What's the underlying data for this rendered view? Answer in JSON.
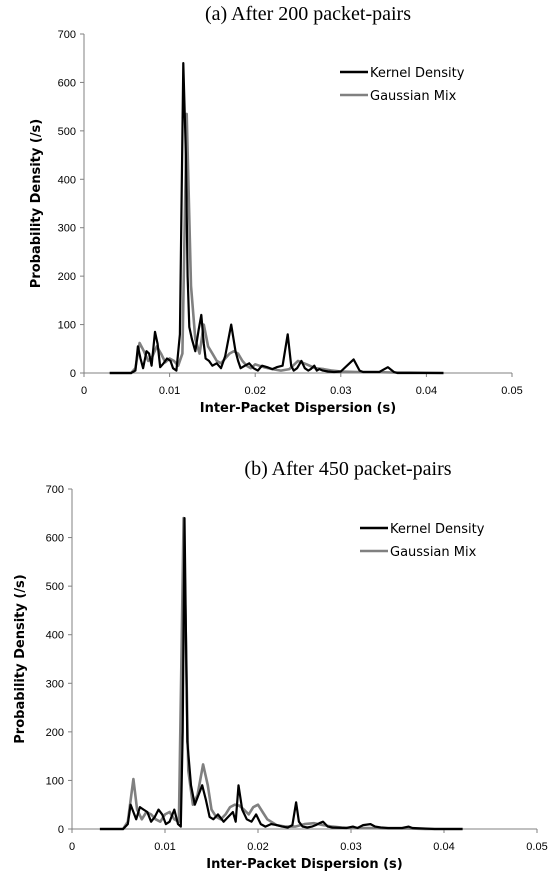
{
  "chart_data": [
    {
      "type": "line",
      "title": "(a)    After 200 packet-pairs",
      "xlabel": "Inter-Packet Dispersion (s)",
      "ylabel": "Probability Density (/s)",
      "xlim": [
        0,
        0.05
      ],
      "ylim": [
        0,
        700
      ],
      "xticks": [
        "0",
        "0.01",
        "0.02",
        "0.03",
        "0.04",
        "0.05"
      ],
      "yticks": [
        "0",
        "100",
        "200",
        "300",
        "400",
        "500",
        "600",
        "700"
      ],
      "legend_position": "top-right",
      "grid": false,
      "series": [
        {
          "name": "Kernel Density",
          "color": "#000000",
          "x": [
            0.003,
            0.0055,
            0.006,
            0.0063,
            0.0066,
            0.0069,
            0.0073,
            0.0076,
            0.0079,
            0.0083,
            0.0086,
            0.0089,
            0.0093,
            0.0097,
            0.0101,
            0.0104,
            0.0108,
            0.0112,
            0.0116,
            0.0119,
            0.0121,
            0.0123,
            0.0126,
            0.013,
            0.0134,
            0.0137,
            0.014,
            0.0142,
            0.0146,
            0.015,
            0.0155,
            0.016,
            0.0165,
            0.0172,
            0.0177,
            0.018,
            0.0183,
            0.0188,
            0.0193,
            0.0198,
            0.0203,
            0.0208,
            0.0214,
            0.022,
            0.0225,
            0.0232,
            0.0238,
            0.0242,
            0.0245,
            0.0249,
            0.0254,
            0.0258,
            0.0262,
            0.0265,
            0.0269,
            0.0272,
            0.0275,
            0.0279,
            0.0285,
            0.0292,
            0.03,
            0.0315,
            0.0322,
            0.0326,
            0.033,
            0.0345,
            0.0355,
            0.0362,
            0.0366,
            0.039,
            0.042
          ],
          "y": [
            0,
            0,
            5,
            55,
            30,
            10,
            45,
            40,
            15,
            85,
            60,
            12,
            20,
            30,
            25,
            10,
            5,
            80,
            640,
            450,
            200,
            95,
            70,
            45,
            90,
            120,
            60,
            30,
            25,
            15,
            20,
            10,
            35,
            100,
            45,
            25,
            10,
            15,
            20,
            10,
            5,
            15,
            12,
            8,
            12,
            15,
            80,
            15,
            5,
            10,
            25,
            10,
            5,
            8,
            15,
            5,
            8,
            5,
            3,
            2,
            3,
            28,
            5,
            2,
            2,
            2,
            12,
            2,
            0,
            0,
            0
          ]
        },
        {
          "name": "Gaussian Mix",
          "color": "#808080",
          "x": [
            0.003,
            0.0055,
            0.006,
            0.0065,
            0.007,
            0.0075,
            0.008,
            0.0085,
            0.009,
            0.0095,
            0.01,
            0.0105,
            0.011,
            0.0115,
            0.012,
            0.0125,
            0.013,
            0.0135,
            0.014,
            0.0145,
            0.015,
            0.0155,
            0.016,
            0.0165,
            0.017,
            0.0175,
            0.018,
            0.0185,
            0.019,
            0.0195,
            0.02,
            0.021,
            0.022,
            0.023,
            0.024,
            0.025,
            0.026,
            0.027,
            0.028,
            0.029,
            0.03,
            0.032,
            0.034,
            0.036,
            0.038,
            0.042
          ],
          "y": [
            0,
            0,
            10,
            62,
            45,
            25,
            35,
            55,
            40,
            22,
            30,
            25,
            15,
            40,
            535,
            180,
            70,
            40,
            100,
            55,
            40,
            25,
            20,
            30,
            40,
            45,
            40,
            25,
            15,
            10,
            18,
            12,
            8,
            5,
            8,
            25,
            18,
            10,
            8,
            5,
            3,
            2,
            2,
            1,
            1,
            0
          ]
        }
      ]
    },
    {
      "type": "line",
      "title": "(b)    After 450 packet-pairs",
      "xlabel": "Inter-Packet Dispersion (s)",
      "ylabel": "Probability Density (/s)",
      "xlim": [
        0,
        0.05
      ],
      "ylim": [
        0,
        700
      ],
      "xticks": [
        "0",
        "0.01",
        "0.02",
        "0.03",
        "0.04",
        "0.05"
      ],
      "yticks": [
        "0",
        "100",
        "200",
        "300",
        "400",
        "500",
        "600",
        "700"
      ],
      "legend_position": "top-right",
      "grid": false,
      "series": [
        {
          "name": "Kernel Density",
          "color": "#000000",
          "x": [
            0.003,
            0.0055,
            0.006,
            0.0063,
            0.0066,
            0.0069,
            0.0073,
            0.0077,
            0.0081,
            0.0085,
            0.0089,
            0.0093,
            0.0097,
            0.0101,
            0.0105,
            0.011,
            0.0114,
            0.0117,
            0.0119,
            0.0121,
            0.0124,
            0.0128,
            0.0132,
            0.0136,
            0.014,
            0.0144,
            0.0148,
            0.0152,
            0.0157,
            0.0163,
            0.0168,
            0.0173,
            0.0176,
            0.0179,
            0.0183,
            0.0188,
            0.0193,
            0.0198,
            0.0203,
            0.0208,
            0.0214,
            0.022,
            0.0226,
            0.0232,
            0.0237,
            0.0241,
            0.0244,
            0.0248,
            0.0253,
            0.0258,
            0.0262,
            0.0266,
            0.027,
            0.0275,
            0.028,
            0.0295,
            0.0302,
            0.0307,
            0.0313,
            0.0321,
            0.0326,
            0.0332,
            0.034,
            0.0355,
            0.0362,
            0.0366,
            0.039,
            0.042
          ],
          "y": [
            0,
            0,
            10,
            50,
            35,
            20,
            45,
            40,
            35,
            15,
            25,
            40,
            30,
            10,
            15,
            40,
            10,
            5,
            200,
            640,
            180,
            90,
            50,
            70,
            90,
            60,
            25,
            20,
            30,
            15,
            25,
            35,
            15,
            90,
            40,
            20,
            15,
            30,
            10,
            5,
            10,
            8,
            5,
            3,
            8,
            55,
            15,
            5,
            3,
            5,
            8,
            12,
            15,
            5,
            3,
            2,
            5,
            2,
            8,
            10,
            5,
            3,
            2,
            2,
            5,
            2,
            0,
            0
          ]
        },
        {
          "name": "Gaussian Mix",
          "color": "#808080",
          "x": [
            0.003,
            0.0055,
            0.006,
            0.0066,
            0.007,
            0.0075,
            0.008,
            0.0085,
            0.009,
            0.0095,
            0.01,
            0.0105,
            0.011,
            0.0115,
            0.012,
            0.0125,
            0.013,
            0.0135,
            0.0141,
            0.0146,
            0.015,
            0.0155,
            0.016,
            0.0165,
            0.017,
            0.0175,
            0.018,
            0.0185,
            0.019,
            0.0195,
            0.02,
            0.0205,
            0.021,
            0.022,
            0.023,
            0.024,
            0.025,
            0.026,
            0.027,
            0.028,
            0.029,
            0.03,
            0.032,
            0.034,
            0.036,
            0.038,
            0.042
          ],
          "y": [
            0,
            0,
            15,
            103,
            40,
            20,
            35,
            30,
            20,
            15,
            30,
            35,
            20,
            15,
            640,
            120,
            50,
            70,
            133,
            90,
            40,
            25,
            20,
            30,
            45,
            50,
            48,
            40,
            30,
            45,
            50,
            35,
            20,
            8,
            5,
            5,
            10,
            12,
            8,
            5,
            3,
            2,
            2,
            1,
            1,
            0,
            0
          ]
        }
      ]
    }
  ]
}
